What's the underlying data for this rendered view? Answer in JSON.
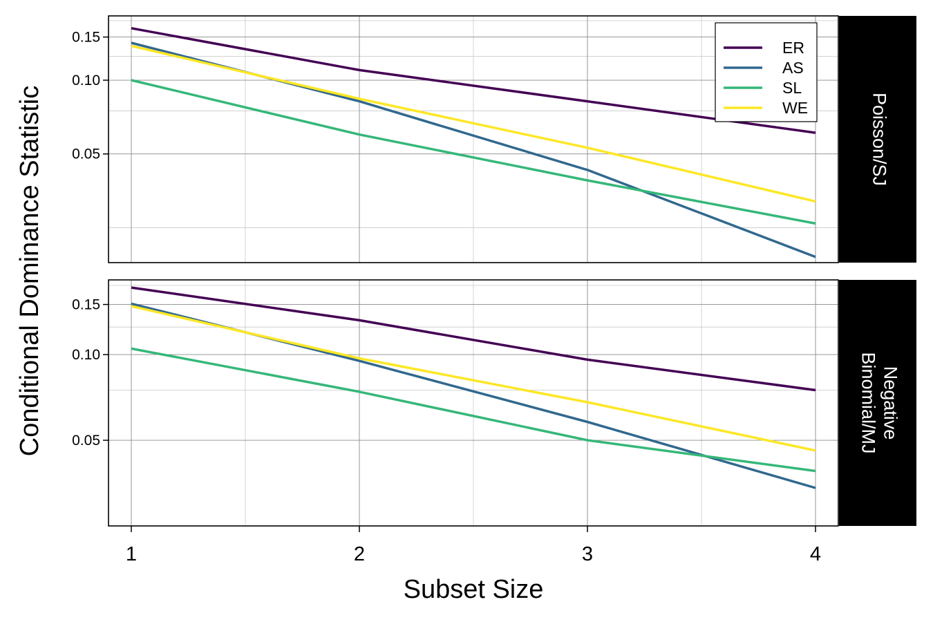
{
  "chart_data": {
    "type": "line",
    "xlabel": "Subset Size",
    "ylabel": "Conditional Dominance Statistic",
    "x": [
      1,
      2,
      3,
      4
    ],
    "xlim": [
      0.9,
      4.1
    ],
    "x_ticks": [
      "1",
      "2",
      "3",
      "4"
    ],
    "y_scale": "log",
    "y_ticks": [
      "0.05",
      "0.10",
      "0.15"
    ],
    "grid": true,
    "legend_position": "top-right",
    "legend": [
      "ER",
      "AS",
      "SL",
      "WE"
    ],
    "colors": {
      "ER": "#440154",
      "AS": "#31688e",
      "SL": "#35b779",
      "WE": "#fde725"
    },
    "panels": [
      {
        "label": "Poisson/SJ",
        "ylim": [
          0.018,
          0.183
        ],
        "series": [
          {
            "name": "ER",
            "values": [
              0.163,
              0.11,
              0.082,
              0.061
            ]
          },
          {
            "name": "AS",
            "values": [
              0.142,
              0.082,
              0.043,
              0.019
            ]
          },
          {
            "name": "SL",
            "values": [
              0.1,
              0.06,
              0.039,
              0.026
            ]
          },
          {
            "name": "WE",
            "values": [
              0.138,
              0.084,
              0.053,
              0.032
            ]
          }
        ]
      },
      {
        "label": "Negative Binomial/MJ",
        "ylim": [
          0.025,
          0.183
        ],
        "series": [
          {
            "name": "ER",
            "values": [
              0.172,
              0.132,
              0.096,
              0.075
            ]
          },
          {
            "name": "AS",
            "values": [
              0.151,
              0.095,
              0.058,
              0.034
            ]
          },
          {
            "name": "SL",
            "values": [
              0.105,
              0.074,
              0.05,
              0.039
            ]
          },
          {
            "name": "WE",
            "values": [
              0.148,
              0.097,
              0.068,
              0.046
            ]
          }
        ]
      }
    ]
  }
}
